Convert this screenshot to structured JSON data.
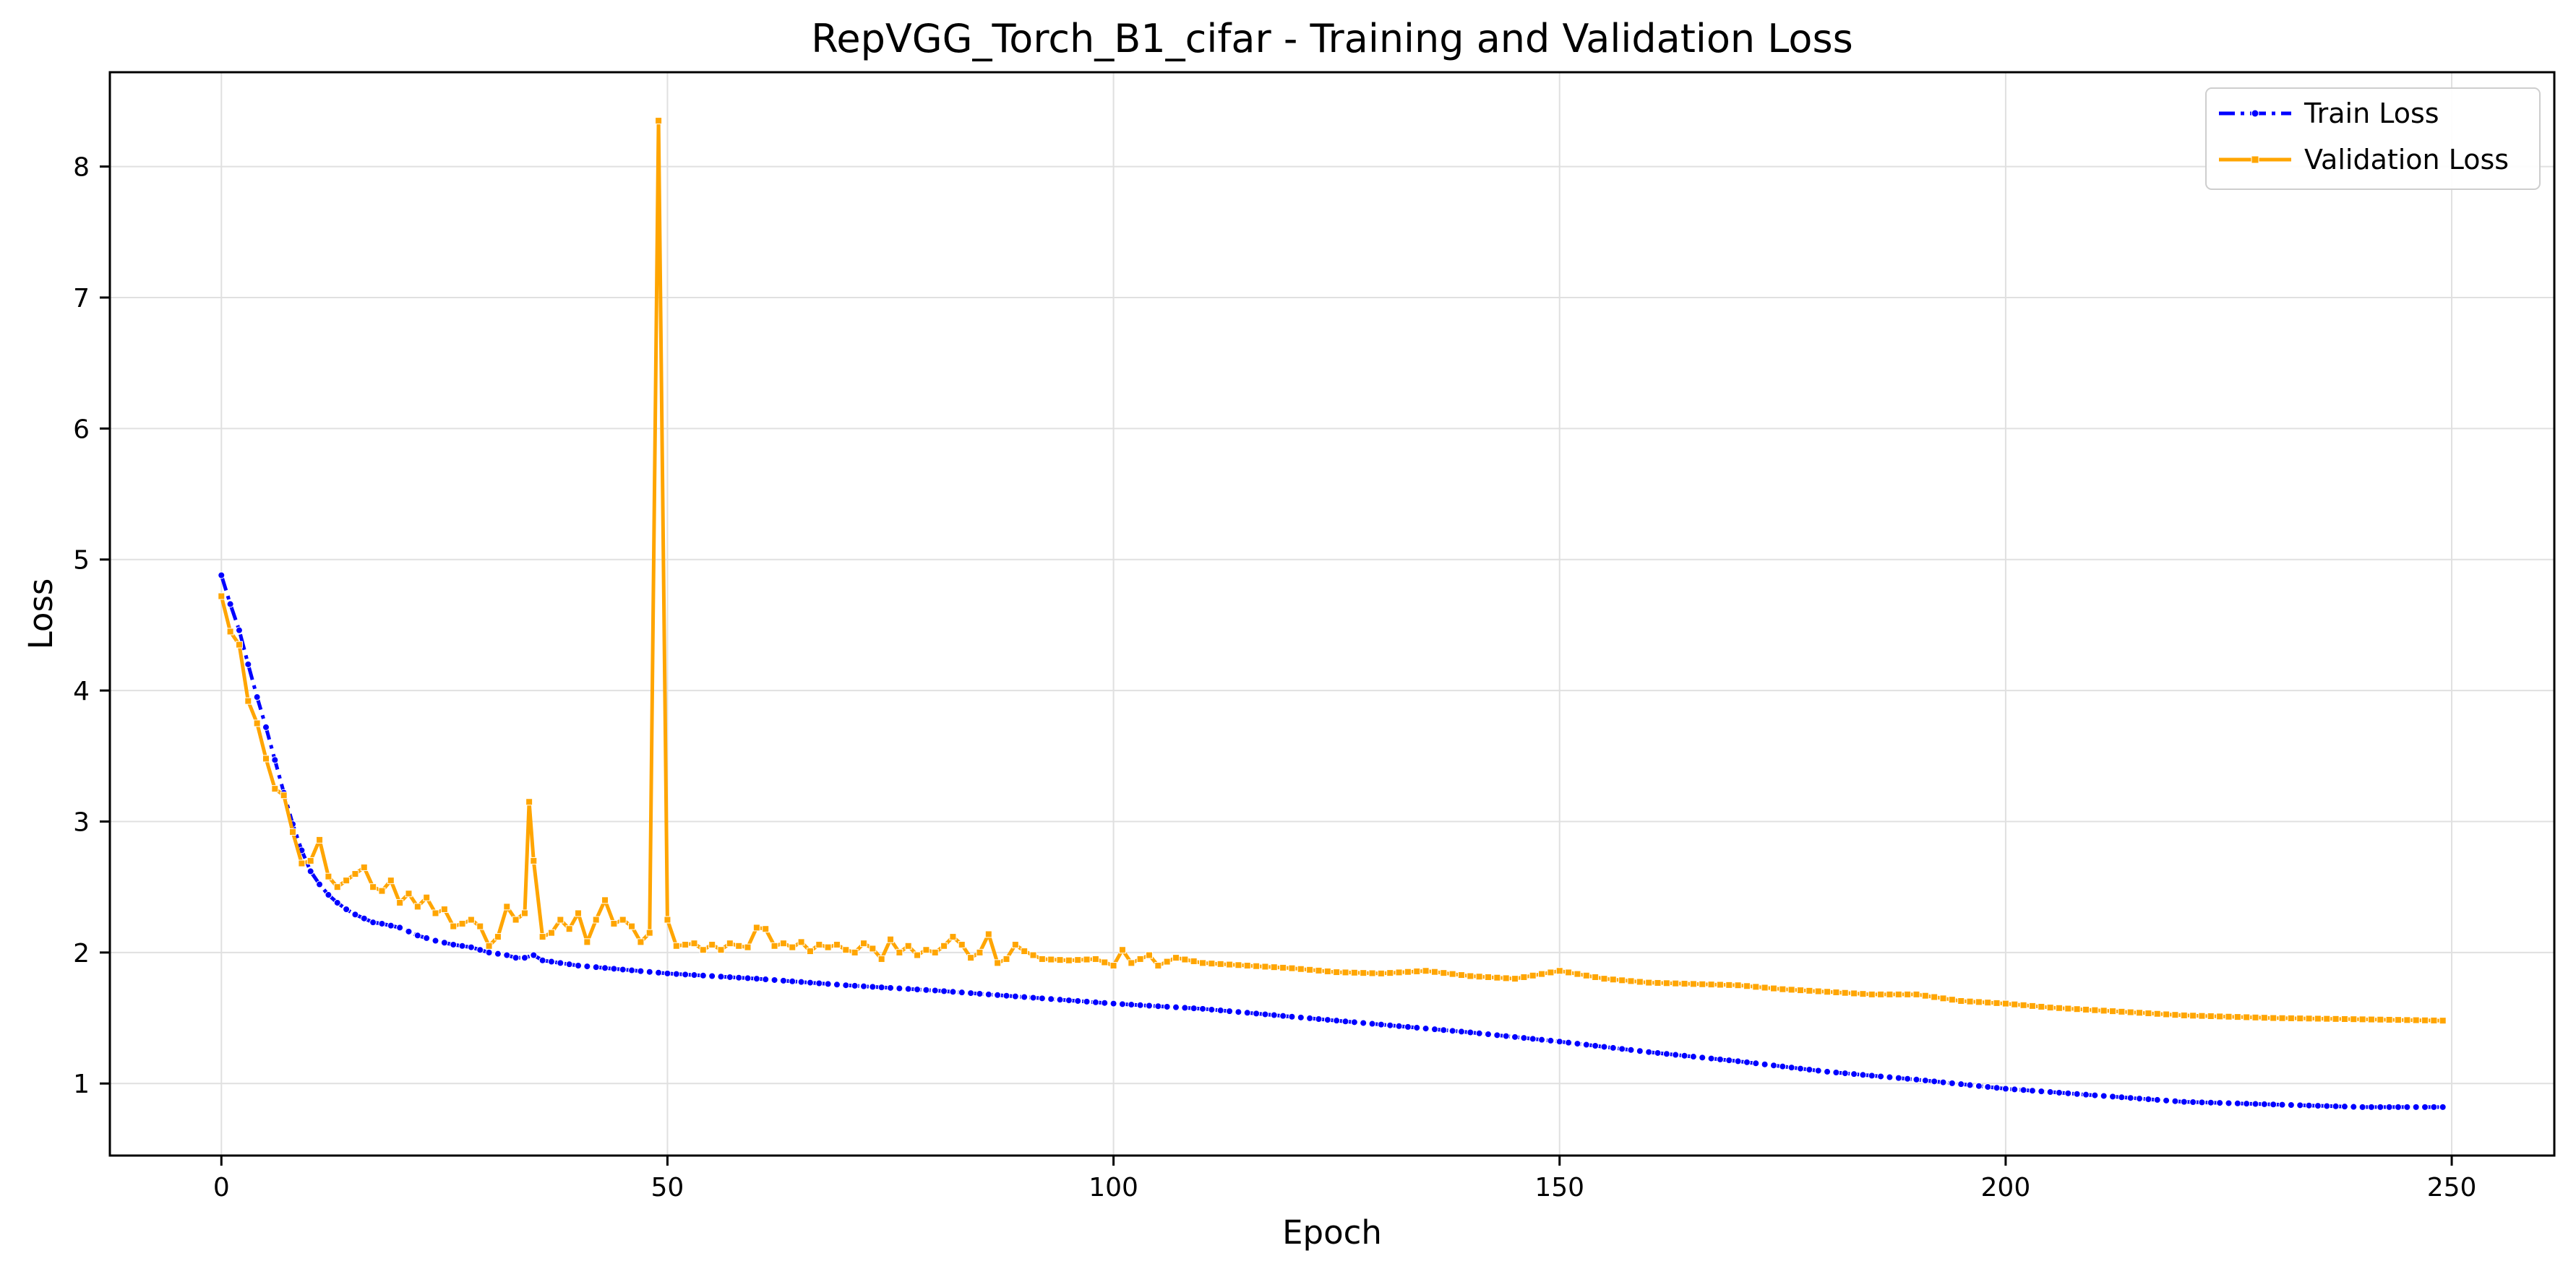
{
  "chart_data": {
    "type": "line",
    "title": "RepVGG_Torch_B1_cifar - Training and Validation Loss",
    "xlabel": "Epoch",
    "ylabel": "Loss",
    "xlim": [
      -12.5,
      261.5
    ],
    "ylim": [
      0.45,
      8.72
    ],
    "xticks": [
      0,
      50,
      100,
      150,
      200,
      250
    ],
    "yticks": [
      1,
      2,
      3,
      4,
      5,
      6,
      7,
      8
    ],
    "grid": true,
    "legend_position": "top-right",
    "series": [
      {
        "name": "Train Loss",
        "color": "#0000ff",
        "marker": "circle",
        "linestyle": "dashdot",
        "anchors": [
          [
            0,
            4.88
          ],
          [
            1,
            4.66
          ],
          [
            2,
            4.46
          ],
          [
            3,
            4.2
          ],
          [
            4,
            3.95
          ],
          [
            5,
            3.72
          ],
          [
            6,
            3.47
          ],
          [
            7,
            3.22
          ],
          [
            8,
            2.98
          ],
          [
            9,
            2.78
          ],
          [
            10,
            2.62
          ],
          [
            11,
            2.52
          ],
          [
            12,
            2.44
          ],
          [
            13,
            2.38
          ],
          [
            14,
            2.33
          ],
          [
            15,
            2.29
          ],
          [
            16,
            2.26
          ],
          [
            17,
            2.23
          ],
          [
            18,
            2.22
          ],
          [
            20,
            2.19
          ],
          [
            22,
            2.13
          ],
          [
            24,
            2.09
          ],
          [
            26,
            2.06
          ],
          [
            28,
            2.04
          ],
          [
            30,
            2.0
          ],
          [
            32,
            1.98
          ],
          [
            33,
            1.96
          ],
          [
            34,
            1.96
          ],
          [
            35,
            1.98
          ],
          [
            36,
            1.94
          ],
          [
            38,
            1.92
          ],
          [
            40,
            1.9
          ],
          [
            45,
            1.87
          ],
          [
            50,
            1.84
          ],
          [
            60,
            1.8
          ],
          [
            70,
            1.75
          ],
          [
            80,
            1.71
          ],
          [
            90,
            1.66
          ],
          [
            100,
            1.61
          ],
          [
            110,
            1.57
          ],
          [
            120,
            1.51
          ],
          [
            130,
            1.45
          ],
          [
            140,
            1.39
          ],
          [
            150,
            1.32
          ],
          [
            160,
            1.24
          ],
          [
            170,
            1.17
          ],
          [
            180,
            1.09
          ],
          [
            190,
            1.03
          ],
          [
            200,
            0.96
          ],
          [
            210,
            0.91
          ],
          [
            220,
            0.86
          ],
          [
            230,
            0.84
          ],
          [
            240,
            0.82
          ],
          [
            249,
            0.82
          ]
        ]
      },
      {
        "name": "Validation Loss",
        "color": "#ffa500",
        "marker": "square",
        "linestyle": "solid",
        "anchors": [
          [
            0,
            4.72
          ],
          [
            1,
            4.45
          ],
          [
            2,
            4.35
          ],
          [
            3,
            3.92
          ],
          [
            4,
            3.75
          ],
          [
            5,
            3.48
          ],
          [
            6,
            3.25
          ],
          [
            7,
            3.2
          ],
          [
            8,
            2.92
          ],
          [
            9,
            2.68
          ],
          [
            10,
            2.7
          ],
          [
            11,
            2.86
          ],
          [
            12,
            2.58
          ],
          [
            13,
            2.5
          ],
          [
            14,
            2.55
          ],
          [
            15,
            2.6
          ],
          [
            16,
            2.65
          ],
          [
            17,
            2.5
          ],
          [
            18,
            2.47
          ],
          [
            19,
            2.55
          ],
          [
            20,
            2.38
          ],
          [
            21,
            2.45
          ],
          [
            22,
            2.35
          ],
          [
            23,
            2.42
          ],
          [
            24,
            2.3
          ],
          [
            25,
            2.33
          ],
          [
            26,
            2.2
          ],
          [
            27,
            2.22
          ],
          [
            28,
            2.25
          ],
          [
            29,
            2.2
          ],
          [
            30,
            2.05
          ],
          [
            31,
            2.12
          ],
          [
            32,
            2.35
          ],
          [
            33,
            2.25
          ],
          [
            34,
            2.3
          ],
          [
            34.5,
            3.15
          ],
          [
            35,
            2.7
          ],
          [
            36,
            2.12
          ],
          [
            37,
            2.15
          ],
          [
            38,
            2.25
          ],
          [
            39,
            2.18
          ],
          [
            40,
            2.3
          ],
          [
            41,
            2.08
          ],
          [
            42,
            2.25
          ],
          [
            43,
            2.4
          ],
          [
            44,
            2.22
          ],
          [
            45,
            2.25
          ],
          [
            46,
            2.2
          ],
          [
            47,
            2.08
          ],
          [
            48,
            2.15
          ],
          [
            49,
            8.35
          ],
          [
            50,
            2.25
          ],
          [
            51,
            2.05
          ],
          [
            52,
            2.06
          ],
          [
            53,
            2.07
          ],
          [
            54,
            2.02
          ],
          [
            55,
            2.06
          ],
          [
            56,
            2.02
          ],
          [
            57,
            2.07
          ],
          [
            58,
            2.05
          ],
          [
            59,
            2.04
          ],
          [
            60,
            2.19
          ],
          [
            61,
            2.18
          ],
          [
            62,
            2.05
          ],
          [
            63,
            2.07
          ],
          [
            64,
            2.04
          ],
          [
            65,
            2.08
          ],
          [
            66,
            2.01
          ],
          [
            67,
            2.06
          ],
          [
            68,
            2.04
          ],
          [
            69,
            2.06
          ],
          [
            70,
            2.02
          ],
          [
            71,
            2.0
          ],
          [
            72,
            2.07
          ],
          [
            73,
            2.03
          ],
          [
            74,
            1.95
          ],
          [
            75,
            2.1
          ],
          [
            76,
            2.0
          ],
          [
            77,
            2.05
          ],
          [
            78,
            1.98
          ],
          [
            79,
            2.02
          ],
          [
            80,
            2.0
          ],
          [
            81,
            2.05
          ],
          [
            82,
            2.12
          ],
          [
            83,
            2.06
          ],
          [
            84,
            1.96
          ],
          [
            85,
            2.0
          ],
          [
            86,
            2.14
          ],
          [
            87,
            1.92
          ],
          [
            88,
            1.95
          ],
          [
            89,
            2.06
          ],
          [
            90,
            2.01
          ],
          [
            92,
            1.95
          ],
          [
            95,
            1.94
          ],
          [
            98,
            1.95
          ],
          [
            100,
            1.9
          ],
          [
            101,
            2.02
          ],
          [
            102,
            1.92
          ],
          [
            104,
            1.98
          ],
          [
            105,
            1.9
          ],
          [
            107,
            1.96
          ],
          [
            110,
            1.92
          ],
          [
            115,
            1.9
          ],
          [
            120,
            1.88
          ],
          [
            125,
            1.85
          ],
          [
            130,
            1.84
          ],
          [
            135,
            1.86
          ],
          [
            140,
            1.82
          ],
          [
            145,
            1.8
          ],
          [
            150,
            1.86
          ],
          [
            155,
            1.8
          ],
          [
            160,
            1.77
          ],
          [
            165,
            1.76
          ],
          [
            170,
            1.75
          ],
          [
            175,
            1.72
          ],
          [
            180,
            1.7
          ],
          [
            185,
            1.68
          ],
          [
            190,
            1.68
          ],
          [
            195,
            1.63
          ],
          [
            200,
            1.61
          ],
          [
            205,
            1.58
          ],
          [
            210,
            1.56
          ],
          [
            215,
            1.54
          ],
          [
            220,
            1.52
          ],
          [
            225,
            1.51
          ],
          [
            230,
            1.5
          ],
          [
            240,
            1.49
          ],
          [
            249,
            1.48
          ]
        ]
      }
    ]
  }
}
